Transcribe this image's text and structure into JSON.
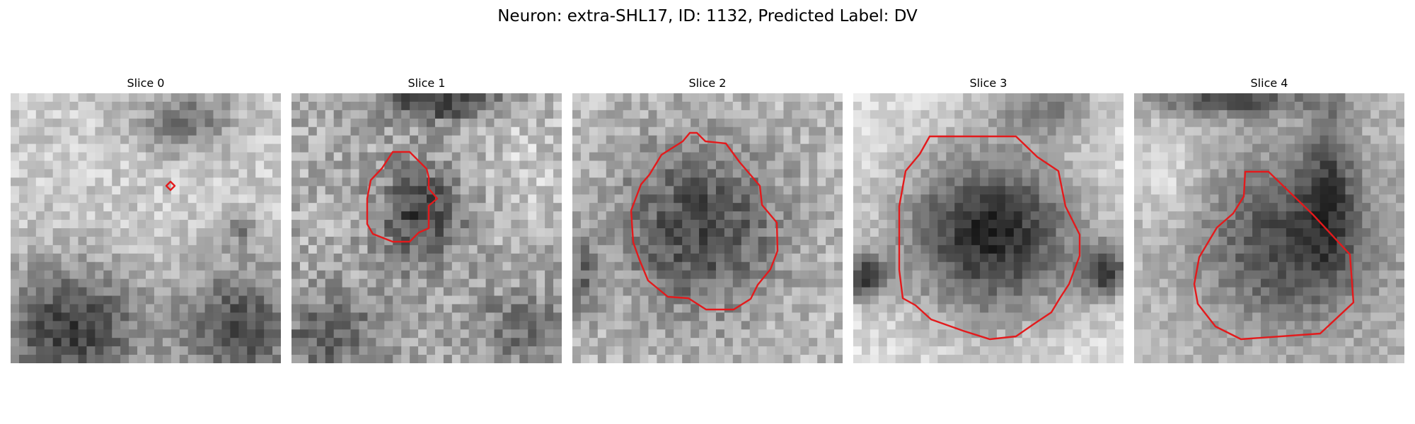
{
  "title": "Neuron: extra-SHL17, ID: 1132, Predicted Label: DV",
  "contour_color": "#e31a1c",
  "panels": [
    {
      "label": "Slice 0"
    },
    {
      "label": "Slice 1"
    },
    {
      "label": "Slice 2"
    },
    {
      "label": "Slice 3"
    },
    {
      "label": "Slice 4"
    }
  ]
}
